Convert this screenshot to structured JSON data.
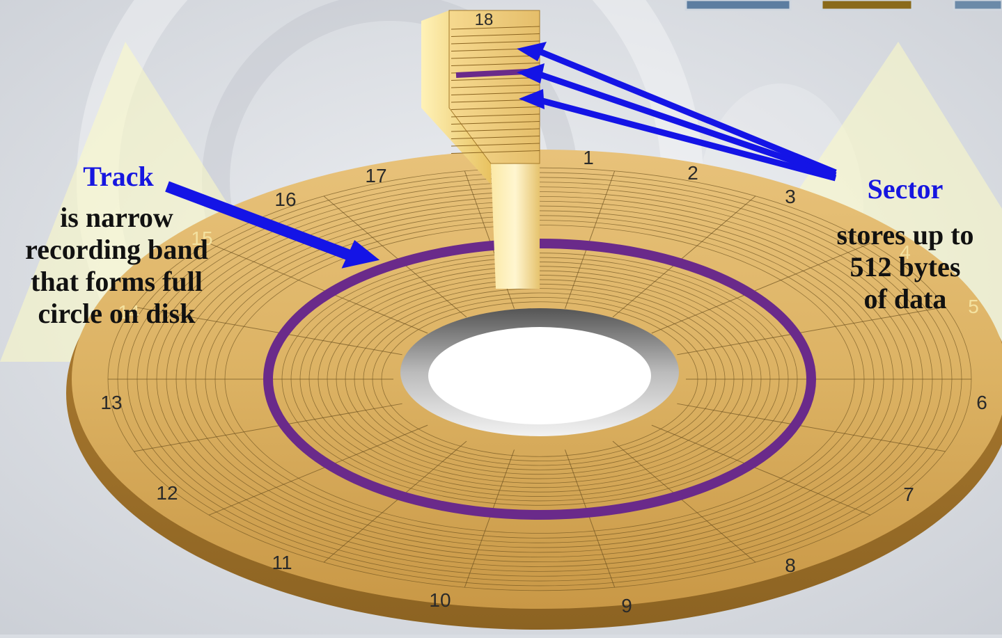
{
  "sector_numbers": [
    "1",
    "2",
    "3",
    "4",
    "5",
    "6",
    "7",
    "8",
    "9",
    "10",
    "11",
    "12",
    "13",
    "14",
    "15",
    "16",
    "17",
    "18"
  ],
  "track_label": {
    "title": "Track",
    "lines": [
      "is narrow",
      "recording band",
      "that forms  full",
      "circle on disk"
    ]
  },
  "sector_label": {
    "title": "Sector",
    "lines": [
      "stores up to",
      "512 bytes",
      "of data"
    ]
  },
  "colors": {
    "disk": "#d9ad57",
    "disk_dark": "#b98a3a",
    "track_highlight": "#6a2a8a",
    "arrow": "#1414e6",
    "title_text": "#1616e0",
    "background": "#d9dde3"
  },
  "icons": [
    "disk-platter-illustration",
    "arrow-icon"
  ]
}
